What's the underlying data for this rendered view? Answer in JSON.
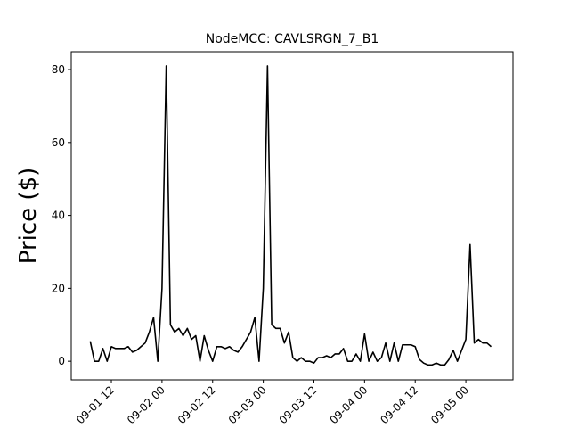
{
  "chart_data": {
    "type": "line",
    "title": "NodeMCC: CAVLSRGN_7_B1",
    "y_label": "Price ($)",
    "x": [
      "09-01 07",
      "09-01 08",
      "09-01 09",
      "09-01 10",
      "09-01 11",
      "09-01 12",
      "09-01 13",
      "09-01 14",
      "09-01 15",
      "09-01 16",
      "09-01 17",
      "09-01 18",
      "09-01 19",
      "09-01 20",
      "09-01 21",
      "09-01 22",
      "09-01 23",
      "09-02 00",
      "09-02 01",
      "09-02 02",
      "09-02 03",
      "09-02 04",
      "09-02 05",
      "09-02 06",
      "09-02 07",
      "09-02 08",
      "09-02 09",
      "09-02 10",
      "09-02 11",
      "09-02 12",
      "09-02 13",
      "09-02 14",
      "09-02 15",
      "09-02 16",
      "09-02 17",
      "09-02 18",
      "09-02 19",
      "09-02 20",
      "09-02 21",
      "09-02 22",
      "09-02 23",
      "09-03 00",
      "09-03 01",
      "09-03 02",
      "09-03 03",
      "09-03 04",
      "09-03 05",
      "09-03 06",
      "09-03 07",
      "09-03 08",
      "09-03 09",
      "09-03 10",
      "09-03 11",
      "09-03 12",
      "09-03 13",
      "09-03 14",
      "09-03 15",
      "09-03 16",
      "09-03 17",
      "09-03 18",
      "09-03 19",
      "09-03 20",
      "09-03 21",
      "09-03 22",
      "09-03 23",
      "09-04 00",
      "09-04 01",
      "09-04 02",
      "09-04 03",
      "09-04 04",
      "09-04 05",
      "09-04 06",
      "09-04 07",
      "09-04 08",
      "09-04 09",
      "09-04 10",
      "09-04 11",
      "09-04 12",
      "09-04 13",
      "09-04 14",
      "09-04 15",
      "09-04 16",
      "09-04 17",
      "09-04 18",
      "09-04 19",
      "09-04 20",
      "09-04 21",
      "09-04 22",
      "09-04 23",
      "09-05 00",
      "09-05 01",
      "09-05 02",
      "09-05 03",
      "09-05 04",
      "09-05 05",
      "09-05 06"
    ],
    "series": [
      {
        "color": "#000000",
        "values": [
          5.5,
          0,
          0,
          3.5,
          0,
          4,
          3.5,
          3.5,
          3.5,
          4,
          2.5,
          3,
          4,
          5,
          8,
          12,
          0,
          20,
          81,
          10,
          8,
          9,
          7,
          9,
          6,
          7,
          0,
          7,
          3,
          0,
          4,
          4,
          3.5,
          4,
          3,
          2.5,
          4,
          6,
          8,
          12,
          0,
          20,
          81,
          10,
          9,
          9,
          5,
          8,
          1,
          0,
          1,
          0,
          0,
          -0.5,
          1,
          1,
          1.5,
          1,
          2,
          2,
          3.5,
          0,
          0,
          2,
          0,
          7.5,
          0,
          2.5,
          0,
          1,
          5,
          0,
          5,
          0,
          4.5,
          4.5,
          4.5,
          4,
          0.5,
          -0.5,
          -1,
          -1,
          -0.5,
          -1,
          -1,
          0.5,
          3,
          0,
          3,
          6,
          32,
          5,
          6,
          5,
          5,
          4
        ]
      }
    ],
    "xlim": [
      "09-01 02:30",
      "09-05 11:10"
    ],
    "xticks": [
      "09-01 12",
      "09-02 00",
      "09-02 12",
      "09-03 00",
      "09-03 12",
      "09-04 00",
      "09-04 12",
      "09-05 00"
    ],
    "ylim": [
      -5.1,
      84.9
    ],
    "yticks": [
      0,
      20,
      40,
      60,
      80
    ]
  }
}
